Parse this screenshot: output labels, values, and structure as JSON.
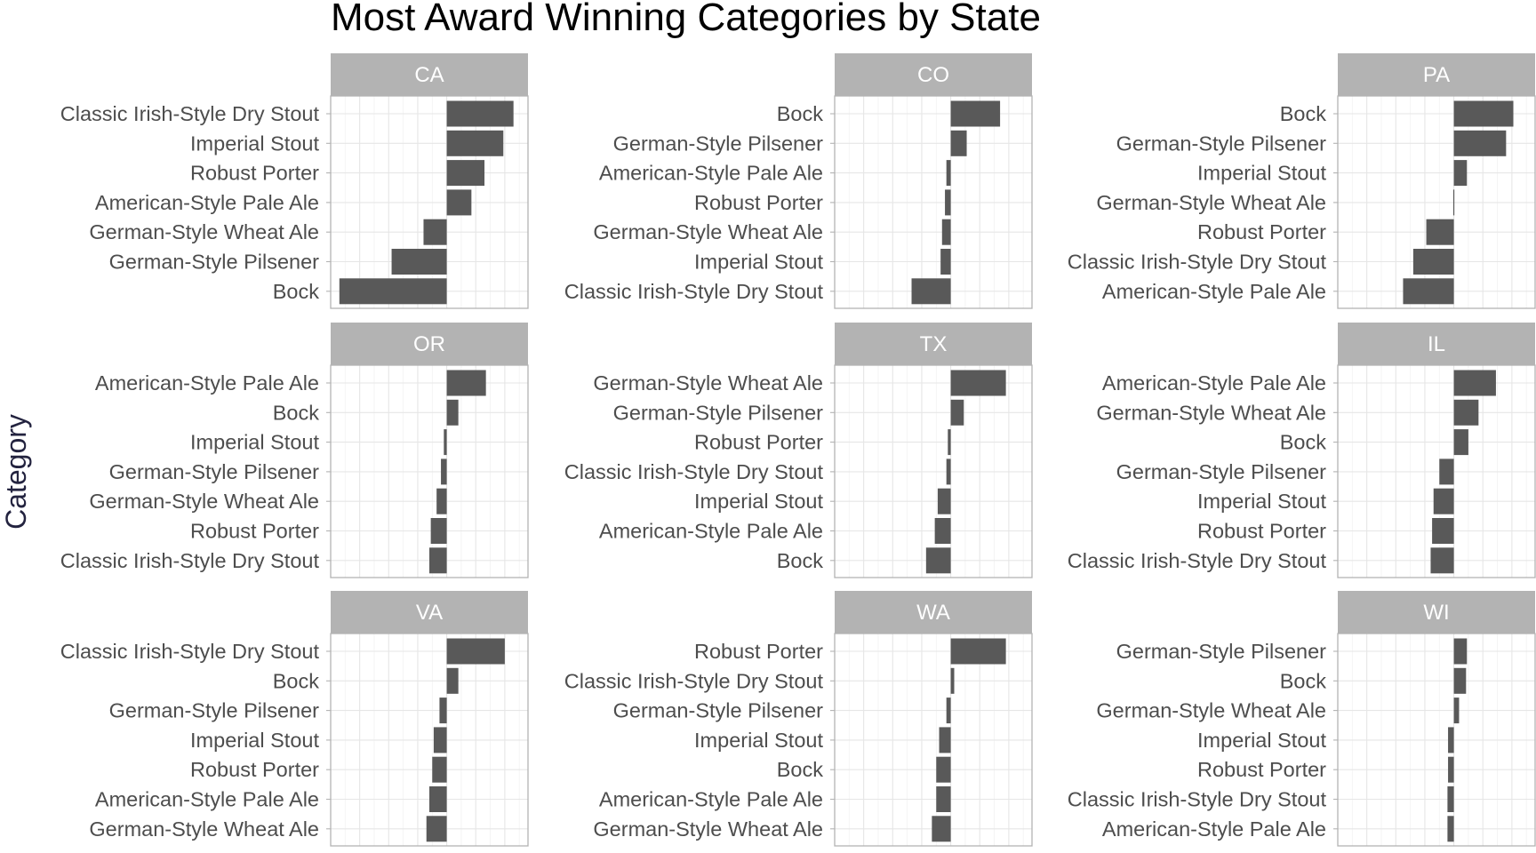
{
  "chart_data": {
    "type": "bar",
    "orientation": "horizontal",
    "title": "Most Award Winning Categories by State",
    "xlabel": "",
    "ylabel": "Category",
    "grid": true,
    "bar_color": "#595959",
    "strip_color": "#b3b3b3",
    "panels": [
      {
        "state": "CA",
        "categories": [
          "Classic Irish-Style Dry Stout",
          "Imperial Stout",
          "Robust Porter",
          "American-Style Pale Ale",
          "German-Style Wheat Ale",
          "German-Style Pilsener",
          "Bock"
        ],
        "values": [
          2.3,
          1.95,
          1.3,
          0.85,
          -0.8,
          -1.9,
          -3.7
        ]
      },
      {
        "state": "CO",
        "categories": [
          "Bock",
          "German-Style Pilsener",
          "American-Style Pale Ale",
          "Robust Porter",
          "German-Style Wheat Ale",
          "Imperial Stout",
          "Classic Irish-Style Dry Stout"
        ],
        "values": [
          1.7,
          0.55,
          -0.15,
          -0.2,
          -0.3,
          -0.35,
          -1.35
        ]
      },
      {
        "state": "PA",
        "categories": [
          "Bock",
          "German-Style Pilsener",
          "Imperial Stout",
          "German-Style Wheat Ale",
          "Robust Porter",
          "Classic Irish-Style Dry Stout",
          "American-Style Pale Ale"
        ],
        "values": [
          2.05,
          1.8,
          0.45,
          -0.02,
          -0.95,
          -1.4,
          -1.75
        ]
      },
      {
        "state": "OR",
        "categories": [
          "American-Style Pale Ale",
          "Bock",
          "Imperial Stout",
          "German-Style Pilsener",
          "German-Style Wheat Ale",
          "Robust Porter",
          "Classic Irish-Style Dry Stout"
        ],
        "values": [
          1.35,
          0.4,
          -0.1,
          -0.2,
          -0.35,
          -0.55,
          -0.6
        ]
      },
      {
        "state": "TX",
        "categories": [
          "German-Style Wheat Ale",
          "German-Style Pilsener",
          "Robust Porter",
          "Classic Irish-Style Dry Stout",
          "Imperial Stout",
          "American-Style Pale Ale",
          "Bock"
        ],
        "values": [
          1.9,
          0.45,
          -0.1,
          -0.15,
          -0.45,
          -0.55,
          -0.85
        ]
      },
      {
        "state": "IL",
        "categories": [
          "American-Style Pale Ale",
          "German-Style Wheat Ale",
          "Bock",
          "German-Style Pilsener",
          "Imperial Stout",
          "Robust Porter",
          "Classic Irish-Style Dry Stout"
        ],
        "values": [
          1.45,
          0.85,
          0.5,
          -0.5,
          -0.7,
          -0.75,
          -0.8
        ]
      },
      {
        "state": "VA",
        "categories": [
          "Classic Irish-Style Dry Stout",
          "Bock",
          "German-Style Pilsener",
          "Imperial Stout",
          "Robust Porter",
          "American-Style Pale Ale",
          "German-Style Wheat Ale"
        ],
        "values": [
          2.0,
          0.4,
          -0.25,
          -0.45,
          -0.5,
          -0.6,
          -0.7
        ]
      },
      {
        "state": "WA",
        "categories": [
          "Robust Porter",
          "Classic Irish-Style Dry Stout",
          "German-Style Pilsener",
          "Imperial Stout",
          "Bock",
          "American-Style Pale Ale",
          "German-Style Wheat Ale"
        ],
        "values": [
          1.9,
          0.12,
          -0.15,
          -0.4,
          -0.5,
          -0.5,
          -0.65
        ]
      },
      {
        "state": "WI",
        "categories": [
          "German-Style Pilsener",
          "Bock",
          "German-Style Wheat Ale",
          "Imperial Stout",
          "Robust Porter",
          "Classic Irish-Style Dry Stout",
          "American-Style Pale Ale"
        ],
        "values": [
          0.45,
          0.42,
          0.18,
          -0.2,
          -0.2,
          -0.22,
          -0.22
        ]
      }
    ]
  }
}
